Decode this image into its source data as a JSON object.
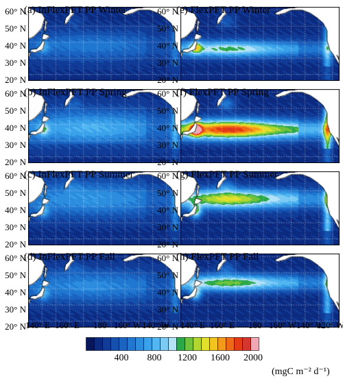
{
  "panels": [
    {
      "label": "(a) InFlexPFT PP Winter",
      "model": "InFlexPFT",
      "season": "Winter"
    },
    {
      "label": "(b) InFlexPFT PP Spring",
      "model": "InFlexPFT",
      "season": "Spring"
    },
    {
      "label": "(c) InFlexPFT PP Summer",
      "model": "InFlexPFT",
      "season": "Summer"
    },
    {
      "label": "(d) InFlexPFT PP Fall",
      "model": "InFlexPFT",
      "season": "Fall"
    },
    {
      "label": "(e) FlexPFT PP Winter",
      "model": "FlexPFT",
      "season": "Winter"
    },
    {
      "label": "(f) FlexPFT PP Spring",
      "model": "FlexPFT",
      "season": "Spring"
    },
    {
      "label": "(g) FlexPFT PP Summer",
      "model": "FlexPFT",
      "season": "Summer"
    },
    {
      "label": "(h) FlexPFT PP Fall",
      "model": "FlexPFT",
      "season": "Fall"
    }
  ],
  "lat_labels": [
    "60° N",
    "50° N",
    "40° N",
    "30° N",
    "20° N"
  ],
  "lon_labels": [
    "140° E",
    "160° E",
    "180",
    "160° W",
    "140° W",
    "120° W"
  ],
  "colorbar": {
    "tick_labels": [
      "400",
      "800",
      "1200",
      "1600",
      "2000"
    ],
    "tick_values": [
      400,
      800,
      1200,
      1600,
      2000
    ],
    "range": [
      0,
      2100
    ],
    "step": 100,
    "units": "(mgC m⁻² d⁻¹)",
    "colors": [
      "#08165a",
      "#0c2a80",
      "#103c98",
      "#1450ad",
      "#1a63c0",
      "#1f77d0",
      "#2c8ddf",
      "#3aa2ea",
      "#52b6f1",
      "#7ccbf5",
      "#b4e2f7",
      "#2aa84a",
      "#6ec23c",
      "#b2d630",
      "#e2e02a",
      "#f4c41e",
      "#f39a1a",
      "#ef6a16",
      "#e53b14",
      "#d4352c",
      "#f0a8b4"
    ]
  },
  "fields": {
    "InFlexPFT": {
      "Winter": {
        "max": 560,
        "lat_peak": 38,
        "lat_width": 9
      },
      "Spring": {
        "max": 820,
        "lat_peak": 38,
        "lat_width": 11
      },
      "Summer": {
        "max": 700,
        "lat_peak": 45,
        "lat_width": 11
      },
      "Fall": {
        "max": 640,
        "lat_peak": 42,
        "lat_width": 10
      }
    },
    "FlexPFT": {
      "Winter": {
        "max": 1150,
        "lat_peak": 36,
        "lat_width": 5
      },
      "Spring": {
        "max": 1900,
        "lat_peak": 37,
        "lat_width": 6
      },
      "Summer": {
        "max": 1450,
        "lat_peak": 45,
        "lat_width": 6
      },
      "Fall": {
        "max": 1250,
        "lat_peak": 44,
        "lat_width": 5
      }
    }
  }
}
